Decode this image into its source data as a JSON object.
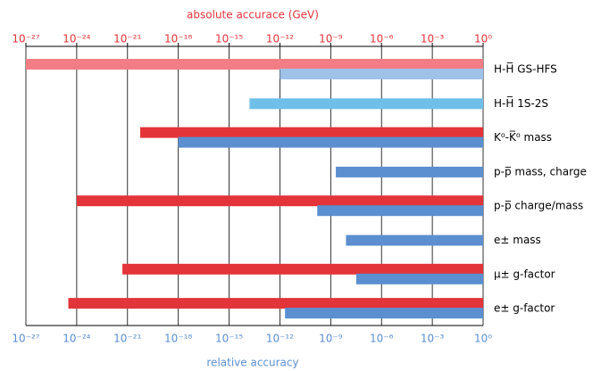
{
  "chart_data": {
    "type": "bar",
    "orientation": "horizontal",
    "scale": "log",
    "x2label": "absolute accurace (GeV)",
    "x2label_color": "#e3343a",
    "xlabel": "relative accuracy",
    "xlabel_color": "#5b8fd0",
    "categories": [
      "H-H̅ GS-HFS",
      "H-H̅ 1S-2S",
      "K⁰-K̅⁰ mass",
      "p-p̅ mass, charge",
      "p-p̅ charge/mass",
      "e± mass",
      "μ± g-factor",
      "e± g-factor"
    ],
    "series": [
      {
        "axis": "x2",
        "colors": [
          "#f27d84",
          null,
          "#e3343a",
          null,
          "#e3343a",
          null,
          "#e3343a",
          "#e3343a"
        ],
        "values": [
          1e-27,
          null,
          5.6e-21,
          null,
          1e-24,
          null,
          5e-22,
          3.2e-25
        ]
      },
      {
        "colors": [
          "#9ec2e8",
          "#70bfe9",
          "#5b8fd0",
          "#5b8fd0",
          "#5b8fd0",
          "#5b8fd0",
          "#5b8fd0",
          "#5b8fd0"
        ],
        "values": [
          1e-12,
          1.6e-14,
          1e-18,
          2e-09,
          1.6e-10,
          8e-09,
          3.2e-08,
          2e-12
        ]
      }
    ],
    "xlim": [
      1e-27,
      1
    ],
    "x2lim": [
      1e-27,
      1
    ],
    "xticks": [
      {
        "value": 1e-27,
        "label": "10⁻²⁷"
      },
      {
        "value": 1e-24,
        "label": "10⁻²⁴"
      },
      {
        "value": 1e-21,
        "label": "10⁻²¹"
      },
      {
        "value": 1e-18,
        "label": "10⁻¹⁸"
      },
      {
        "value": 1e-15,
        "label": "10⁻¹⁵"
      },
      {
        "value": 1e-12,
        "label": "10⁻¹²"
      },
      {
        "value": 1e-09,
        "label": "10⁻⁹"
      },
      {
        "value": 1e-06,
        "label": "10⁻⁶"
      },
      {
        "value": 0.001,
        "label": "10⁻³"
      },
      {
        "value": 1,
        "label": "10⁰"
      }
    ],
    "x2ticks": [
      {
        "value": 1e-27,
        "label": "10⁻²⁷"
      },
      {
        "value": 1e-24,
        "label": "10⁻²⁴"
      },
      {
        "value": 1e-21,
        "label": "10⁻²¹"
      },
      {
        "value": 1e-18,
        "label": "10⁻¹⁸"
      },
      {
        "value": 1e-15,
        "label": "10⁻¹⁵"
      },
      {
        "value": 1e-12,
        "label": "10⁻¹²"
      },
      {
        "value": 1e-09,
        "label": "10⁻⁹"
      },
      {
        "value": 1e-06,
        "label": "10⁻⁶"
      },
      {
        "value": 0.001,
        "label": "10⁻³"
      },
      {
        "value": 1,
        "label": "10⁰"
      }
    ],
    "xtick_color": "#5b8fd0",
    "x2tick_color": "#e3343a",
    "grid": true
  }
}
